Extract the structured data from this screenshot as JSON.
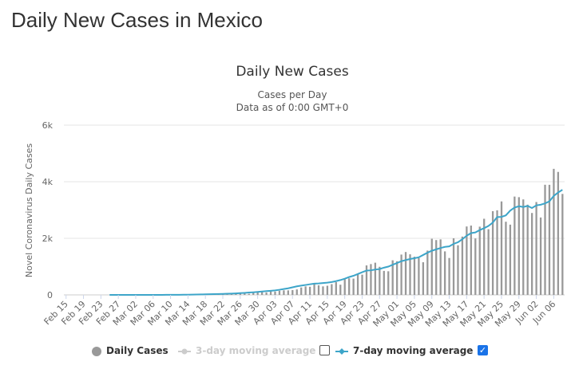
{
  "page": {
    "heading": "Daily New Cases in Mexico"
  },
  "legend": {
    "items": [
      {
        "label": "Daily Cases",
        "active": true
      },
      {
        "label": "3-day moving average",
        "active": false,
        "checked": false
      },
      {
        "label": "7-day moving average",
        "active": true,
        "checked": true
      }
    ],
    "colors": {
      "daily": "#999999",
      "avg3": "#cccccc",
      "avg7": "#3da5c9"
    }
  },
  "chart_data": {
    "type": "bar",
    "title": "Daily New Cases",
    "subtitle_lines": [
      "Cases per Day",
      "Data as of 0:00 GMT+0"
    ],
    "xlabel": "",
    "ylabel": "Novel Coronavirus Daily Cases",
    "ylim": [
      0,
      6000
    ],
    "yticks": [
      0,
      2000,
      4000,
      6000
    ],
    "ytick_labels": [
      "0",
      "2k",
      "4k",
      "6k"
    ],
    "x_start": "Feb 15",
    "x_end": "Jun 07",
    "xtick_labels": [
      "Feb 15",
      "Feb 19",
      "Feb 23",
      "Feb 27",
      "Mar 02",
      "Mar 06",
      "Mar 10",
      "Mar 14",
      "Mar 18",
      "Mar 22",
      "Mar 26",
      "Mar 30",
      "Apr 03",
      "Apr 07",
      "Apr 11",
      "Apr 15",
      "Apr 19",
      "Apr 23",
      "Apr 27",
      "May 01",
      "May 05",
      "May 09",
      "May 13",
      "May 17",
      "May 21",
      "May 25",
      "May 29",
      "Jun 02",
      "Jun 06"
    ],
    "grid": true,
    "bar_color": "#999999",
    "line_color": "#3da5c9",
    "series": [
      {
        "name": "Daily Cases",
        "type": "bar",
        "values": [
          0,
          0,
          0,
          0,
          0,
          0,
          0,
          0,
          0,
          0,
          0,
          0,
          0,
          0,
          0,
          1,
          0,
          0,
          1,
          0,
          1,
          0,
          1,
          0,
          1,
          1,
          2,
          4,
          5,
          1,
          8,
          10,
          14,
          12,
          26,
          29,
          25,
          40,
          31,
          41,
          47,
          55,
          40,
          70,
          85,
          100,
          87,
          125,
          117,
          147,
          161,
          160,
          170,
          194,
          262,
          300,
          288,
          410,
          339,
          301,
          323,
          380,
          450,
          360,
          551,
          586,
          576,
          740,
          715,
          1043,
          1089,
          1138,
          993,
          848,
          835,
          1223,
          1188,
          1425,
          1515,
          1434,
          1349,
          1305,
          1154,
          1566,
          1984,
          1938,
          1962,
          1538,
          1305,
          2000,
          1754,
          2060,
          2418,
          2450,
          1994,
          2411,
          2691,
          2321,
          2959,
          2990,
          3304,
          2586,
          2483,
          3475,
          3454,
          3374,
          3188,
          2895,
          3282,
          2736,
          3893,
          3891,
          4455,
          4346,
          3569
        ]
      },
      {
        "name": "7-day moving average",
        "type": "line",
        "start": "Mar 01",
        "values": [
          0,
          0,
          0,
          0,
          0,
          0,
          0,
          0,
          0,
          0,
          1,
          1,
          1,
          2,
          2,
          3,
          4,
          6,
          7,
          10,
          13,
          17,
          20,
          23,
          27,
          31,
          36,
          42,
          47,
          54,
          62,
          71,
          83,
          93,
          106,
          120,
          133,
          145,
          160,
          181,
          207,
          233,
          268,
          302,
          328,
          350,
          375,
          398,
          406,
          420,
          434,
          455,
          486,
          524,
          573,
          630,
          676,
          738,
          802,
          860,
          868,
          896,
          912,
          962,
          1000,
          1064,
          1126,
          1190,
          1230,
          1267,
          1296,
          1328,
          1410,
          1491,
          1560,
          1609,
          1656,
          1696,
          1714,
          1803,
          1860,
          1965,
          2091,
          2184,
          2207,
          2290,
          2358,
          2435,
          2554,
          2751,
          2757,
          2811,
          2978,
          3087,
          3133,
          3108,
          3145,
          3070,
          3164,
          3187,
          3234,
          3305,
          3499,
          3619,
          3715
        ]
      }
    ]
  }
}
